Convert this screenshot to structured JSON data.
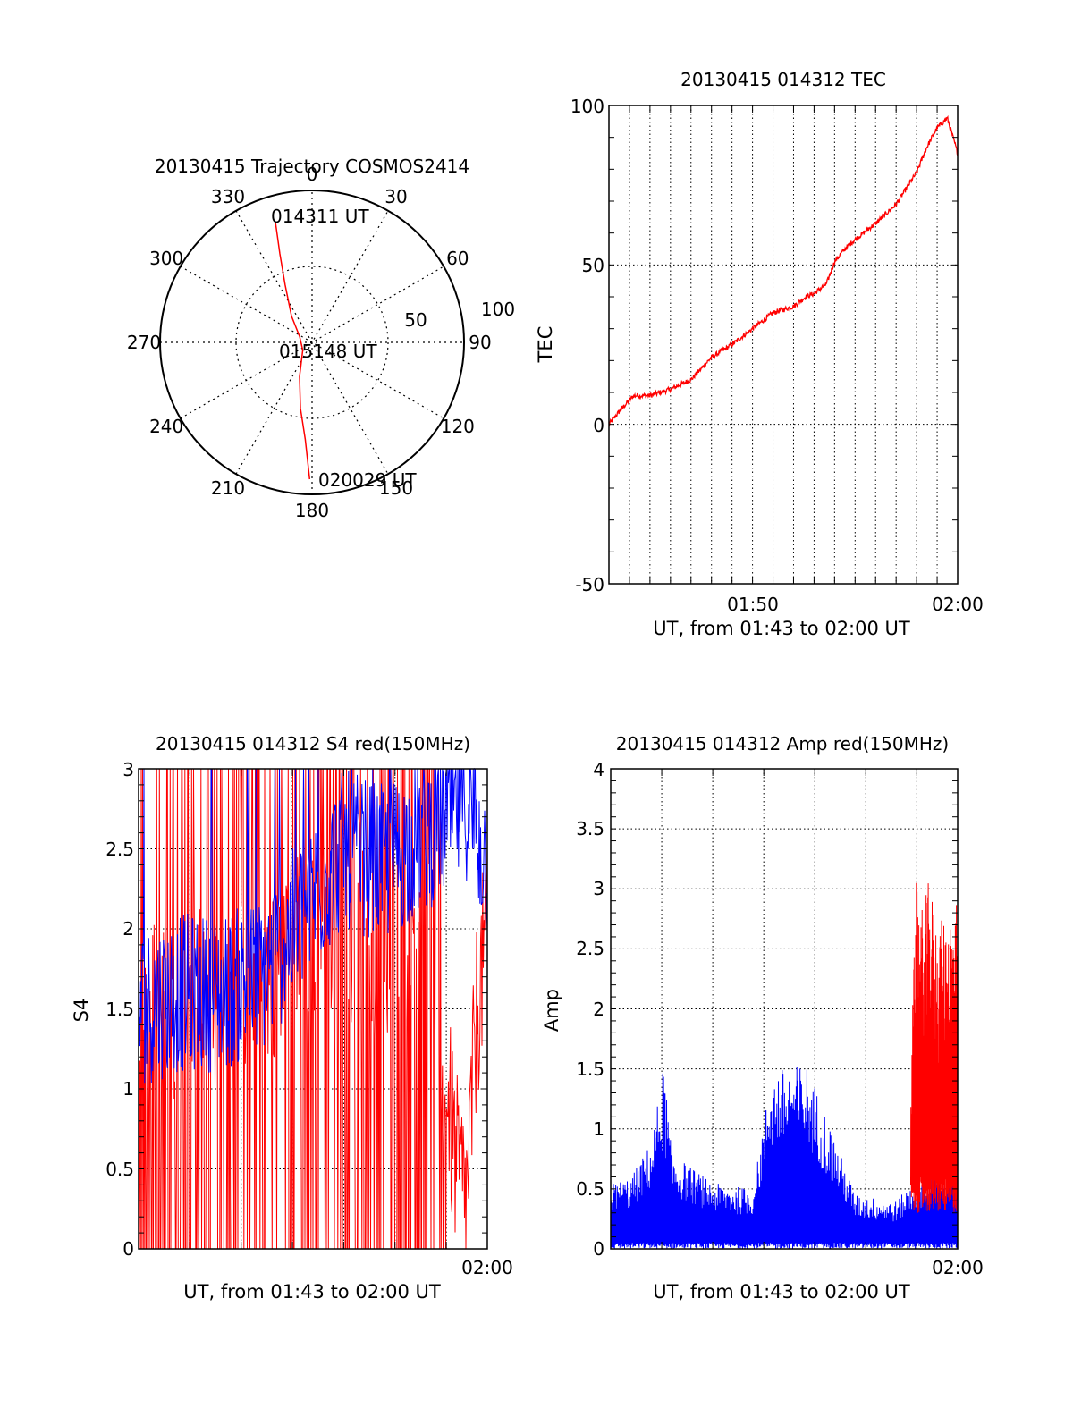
{
  "charts": {
    "trajectory": {
      "title": "20130415 Trajectory COSMOS2414",
      "azimuth_labels": [
        "0",
        "30",
        "60",
        "90",
        "120",
        "150",
        "180",
        "210",
        "240",
        "270",
        "300",
        "330"
      ],
      "elevation_ring_labels": [
        "50",
        "100"
      ],
      "time_labels": {
        "start": "014311 UT",
        "mid": "015148 UT",
        "end": "020029 UT"
      }
    },
    "tec": {
      "title": "20130415 014312 TEC",
      "ylabel": "TEC",
      "xlabel": "UT, from 01:43 to 02:00 UT",
      "yticks": [
        "-50",
        "0",
        "50",
        "100"
      ],
      "xticks": [
        "01:50",
        "02:00"
      ]
    },
    "s4": {
      "title": "20130415 014312 S4 red(150MHz)",
      "ylabel": "S4",
      "xlabel": "UT, from 01:43 to 02:00 UT",
      "yticks": [
        "0",
        "0.5",
        "1",
        "1.5",
        "2",
        "2.5",
        "3"
      ],
      "xticks": [
        "02:00"
      ]
    },
    "amp": {
      "title": "20130415 014312 Amp red(150MHz)",
      "ylabel": "Amp",
      "xlabel": "UT, from 01:43 to 02:00 UT",
      "yticks": [
        "0",
        "0.5",
        "1",
        "1.5",
        "2",
        "2.5",
        "3",
        "3.5",
        "4"
      ],
      "xticks": [
        "02:00"
      ]
    }
  },
  "colors": {
    "series_red": "#ff0000",
    "series_blue": "#0000ff",
    "axes": "#000000",
    "grid": "#000000"
  },
  "chart_data": [
    {
      "type": "polar-trajectory",
      "title": "20130415 Trajectory COSMOS2414",
      "r_max": 100,
      "r_rings": [
        50,
        100
      ],
      "azimuth_step_deg": 30,
      "trajectory": [
        {
          "az": 343,
          "r": 82
        },
        {
          "az": 340,
          "r": 62
        },
        {
          "az": 335,
          "r": 42
        },
        {
          "az": 322,
          "r": 22
        },
        {
          "az": 295,
          "r": 9
        },
        {
          "az": 230,
          "r": 8
        },
        {
          "az": 200,
          "r": 24
        },
        {
          "az": 190,
          "r": 44
        },
        {
          "az": 184,
          "r": 64
        },
        {
          "az": 181,
          "r": 90
        }
      ],
      "markers": [
        {
          "label": "014311 UT",
          "az": 343,
          "r": 82
        },
        {
          "label": "015148 UT",
          "az": 230,
          "r": 8
        },
        {
          "label": "020029 UT",
          "az": 181,
          "r": 90
        }
      ]
    },
    {
      "type": "line",
      "title": "20130415 014312 TEC",
      "xlabel": "UT, from 01:43 to 02:00 UT",
      "ylabel": "TEC",
      "x_unit": "minutes after 01:43",
      "xlim": [
        0,
        17
      ],
      "ylim": [
        -50,
        100
      ],
      "grid": true,
      "series": [
        {
          "color": "#ff0000",
          "x": [
            0,
            0.5,
            1.2,
            2,
            3,
            4,
            5,
            5.5,
            6,
            7,
            8,
            9,
            9.6,
            10,
            10.6,
            11,
            11.5,
            12,
            13,
            14,
            15,
            15.5,
            16,
            16.5,
            17
          ],
          "y": [
            0,
            4,
            9,
            9,
            11,
            14,
            21,
            23,
            25,
            30,
            35,
            37,
            40,
            41,
            44,
            51,
            55,
            58,
            63,
            69,
            79,
            87,
            93,
            96,
            85
          ]
        }
      ]
    },
    {
      "type": "line",
      "title": "20130415 014312 S4 red(150MHz)",
      "xlabel": "UT, from 01:43 to 02:00 UT",
      "ylabel": "S4",
      "x_unit": "minutes after 01:43",
      "xlim": [
        0,
        17
      ],
      "ylim": [
        0,
        3
      ],
      "grid": true,
      "series": [
        {
          "color": "#ff0000",
          "note": "noisy, frequently spanning 0 to 3",
          "x": [
            0,
            2,
            4,
            6,
            8,
            10,
            12,
            13,
            14,
            15,
            15.5,
            16,
            16.5,
            17
          ],
          "y": [
            1.5,
            1.5,
            1.6,
            1.7,
            2.0,
            2.0,
            1.9,
            2.0,
            2.1,
            1.0,
            0.5,
            0.3,
            1.5,
            2.0
          ]
        },
        {
          "color": "#0000ff",
          "note": "noisy band",
          "x": [
            0,
            2,
            4,
            6,
            8,
            10,
            12,
            14,
            16,
            17
          ],
          "y": [
            1.5,
            1.6,
            1.6,
            1.7,
            2.1,
            2.5,
            2.4,
            2.6,
            2.8,
            2.4
          ]
        }
      ]
    },
    {
      "type": "line",
      "title": "20130415 014312 Amp red(150MHz)",
      "xlabel": "UT, from 01:43 to 02:00 UT",
      "ylabel": "Amp",
      "x_unit": "minutes after 01:43",
      "xlim": [
        0,
        17
      ],
      "ylim": [
        0,
        4
      ],
      "grid": true,
      "series": [
        {
          "color": "#0000ff",
          "note": "noise band between ~0 and peaks",
          "x": [
            0,
            1,
            2,
            2.6,
            3,
            5,
            7,
            7.8,
            8.2,
            9.6,
            12,
            14,
            14.5,
            15,
            16,
            17
          ],
          "y": [
            0.55,
            0.6,
            0.9,
            1.55,
            0.8,
            0.55,
            0.5,
            1.45,
            1.5,
            1.55,
            0.45,
            0.4,
            0.5,
            0.6,
            0.7,
            0.8
          ]
        },
        {
          "color": "#ff0000",
          "note": "burst from ~14.7 to 17",
          "x": [
            14.7,
            15,
            15.3,
            15.6,
            16,
            16.5,
            17
          ],
          "y": [
            1.5,
            3.2,
            2.8,
            3.1,
            2.7,
            2.8,
            2.9
          ]
        }
      ]
    }
  ]
}
